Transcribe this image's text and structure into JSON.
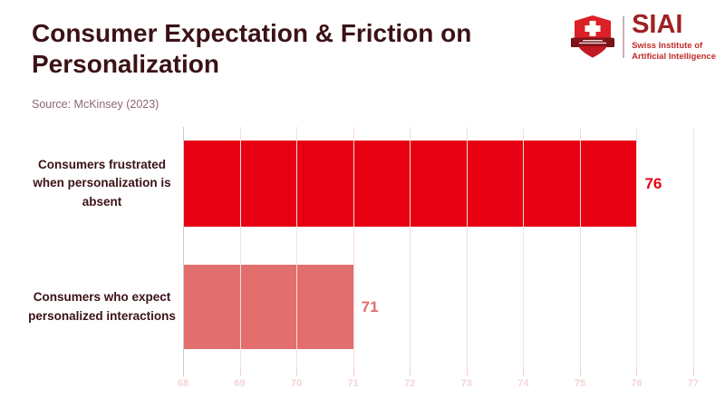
{
  "header": {
    "title": "Consumer Expectation & Friction on Personalization",
    "source": "Source: McKinsey (2023)"
  },
  "logo": {
    "wordmark": "SIAI",
    "subtitle_line1": "Swiss Institute of",
    "subtitle_line2": "Artificial Intelligence",
    "shield_icon": "swiss-shield-cross-icon",
    "brand_red": "#C22B2B",
    "wordmark_color": "#A02122"
  },
  "chart_data": {
    "type": "bar",
    "orientation": "horizontal",
    "title": "Consumer Expectation & Friction on Personalization",
    "source": "McKinsey (2023)",
    "categories": [
      "Consumers frustrated when personalization is absent",
      "Consumers who expect personalized interactions"
    ],
    "values": [
      76,
      71
    ],
    "bar_colors": [
      "#E60012",
      "#E26E6E"
    ],
    "value_label_colors": [
      "#E60012",
      "#E26E6E"
    ],
    "xlim": [
      68,
      77
    ],
    "xticks": [
      68,
      69,
      70,
      71,
      72,
      73,
      74,
      75,
      76,
      77
    ],
    "grid": true,
    "gridline_color": "#F7DDDD",
    "axis_line_color": "#CCCCCC",
    "tick_label_color": "#F5D4D4",
    "category_label_color": "#3B1216",
    "legend": "none"
  }
}
